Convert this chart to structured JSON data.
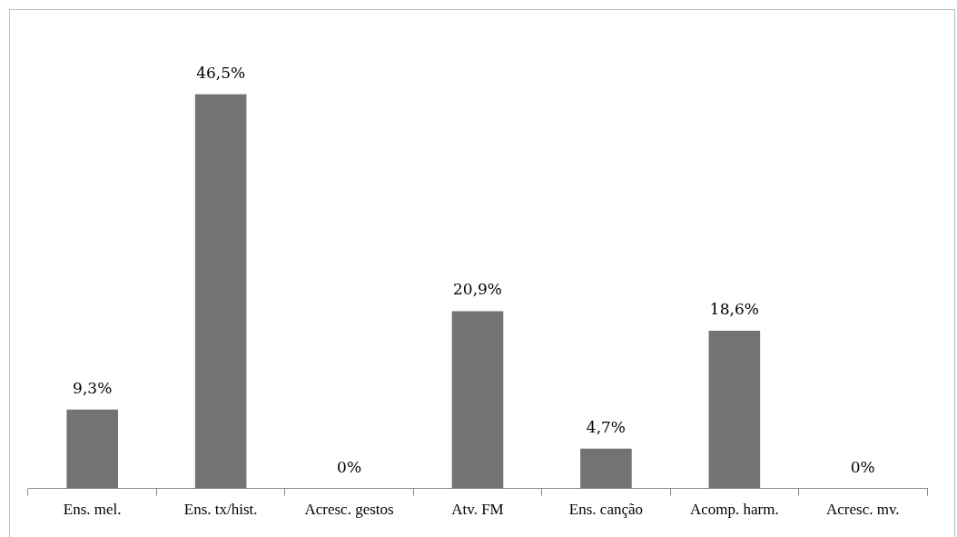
{
  "chart_data": {
    "type": "bar",
    "categories": [
      "Ens. mel.",
      "Ens. tx/hist.",
      "Acresc. gestos",
      "Atv. FM",
      "Ens. canção",
      "Acomp. harm.",
      "Acresc. mv."
    ],
    "values": [
      9.3,
      46.5,
      0,
      20.9,
      4.7,
      18.6,
      0
    ],
    "value_labels": [
      "9,3%",
      "46,5%",
      "0%",
      "20,9%",
      "4,7%",
      "18,6%",
      "0%"
    ],
    "color": "#737373",
    "grid": false,
    "legend": false
  }
}
